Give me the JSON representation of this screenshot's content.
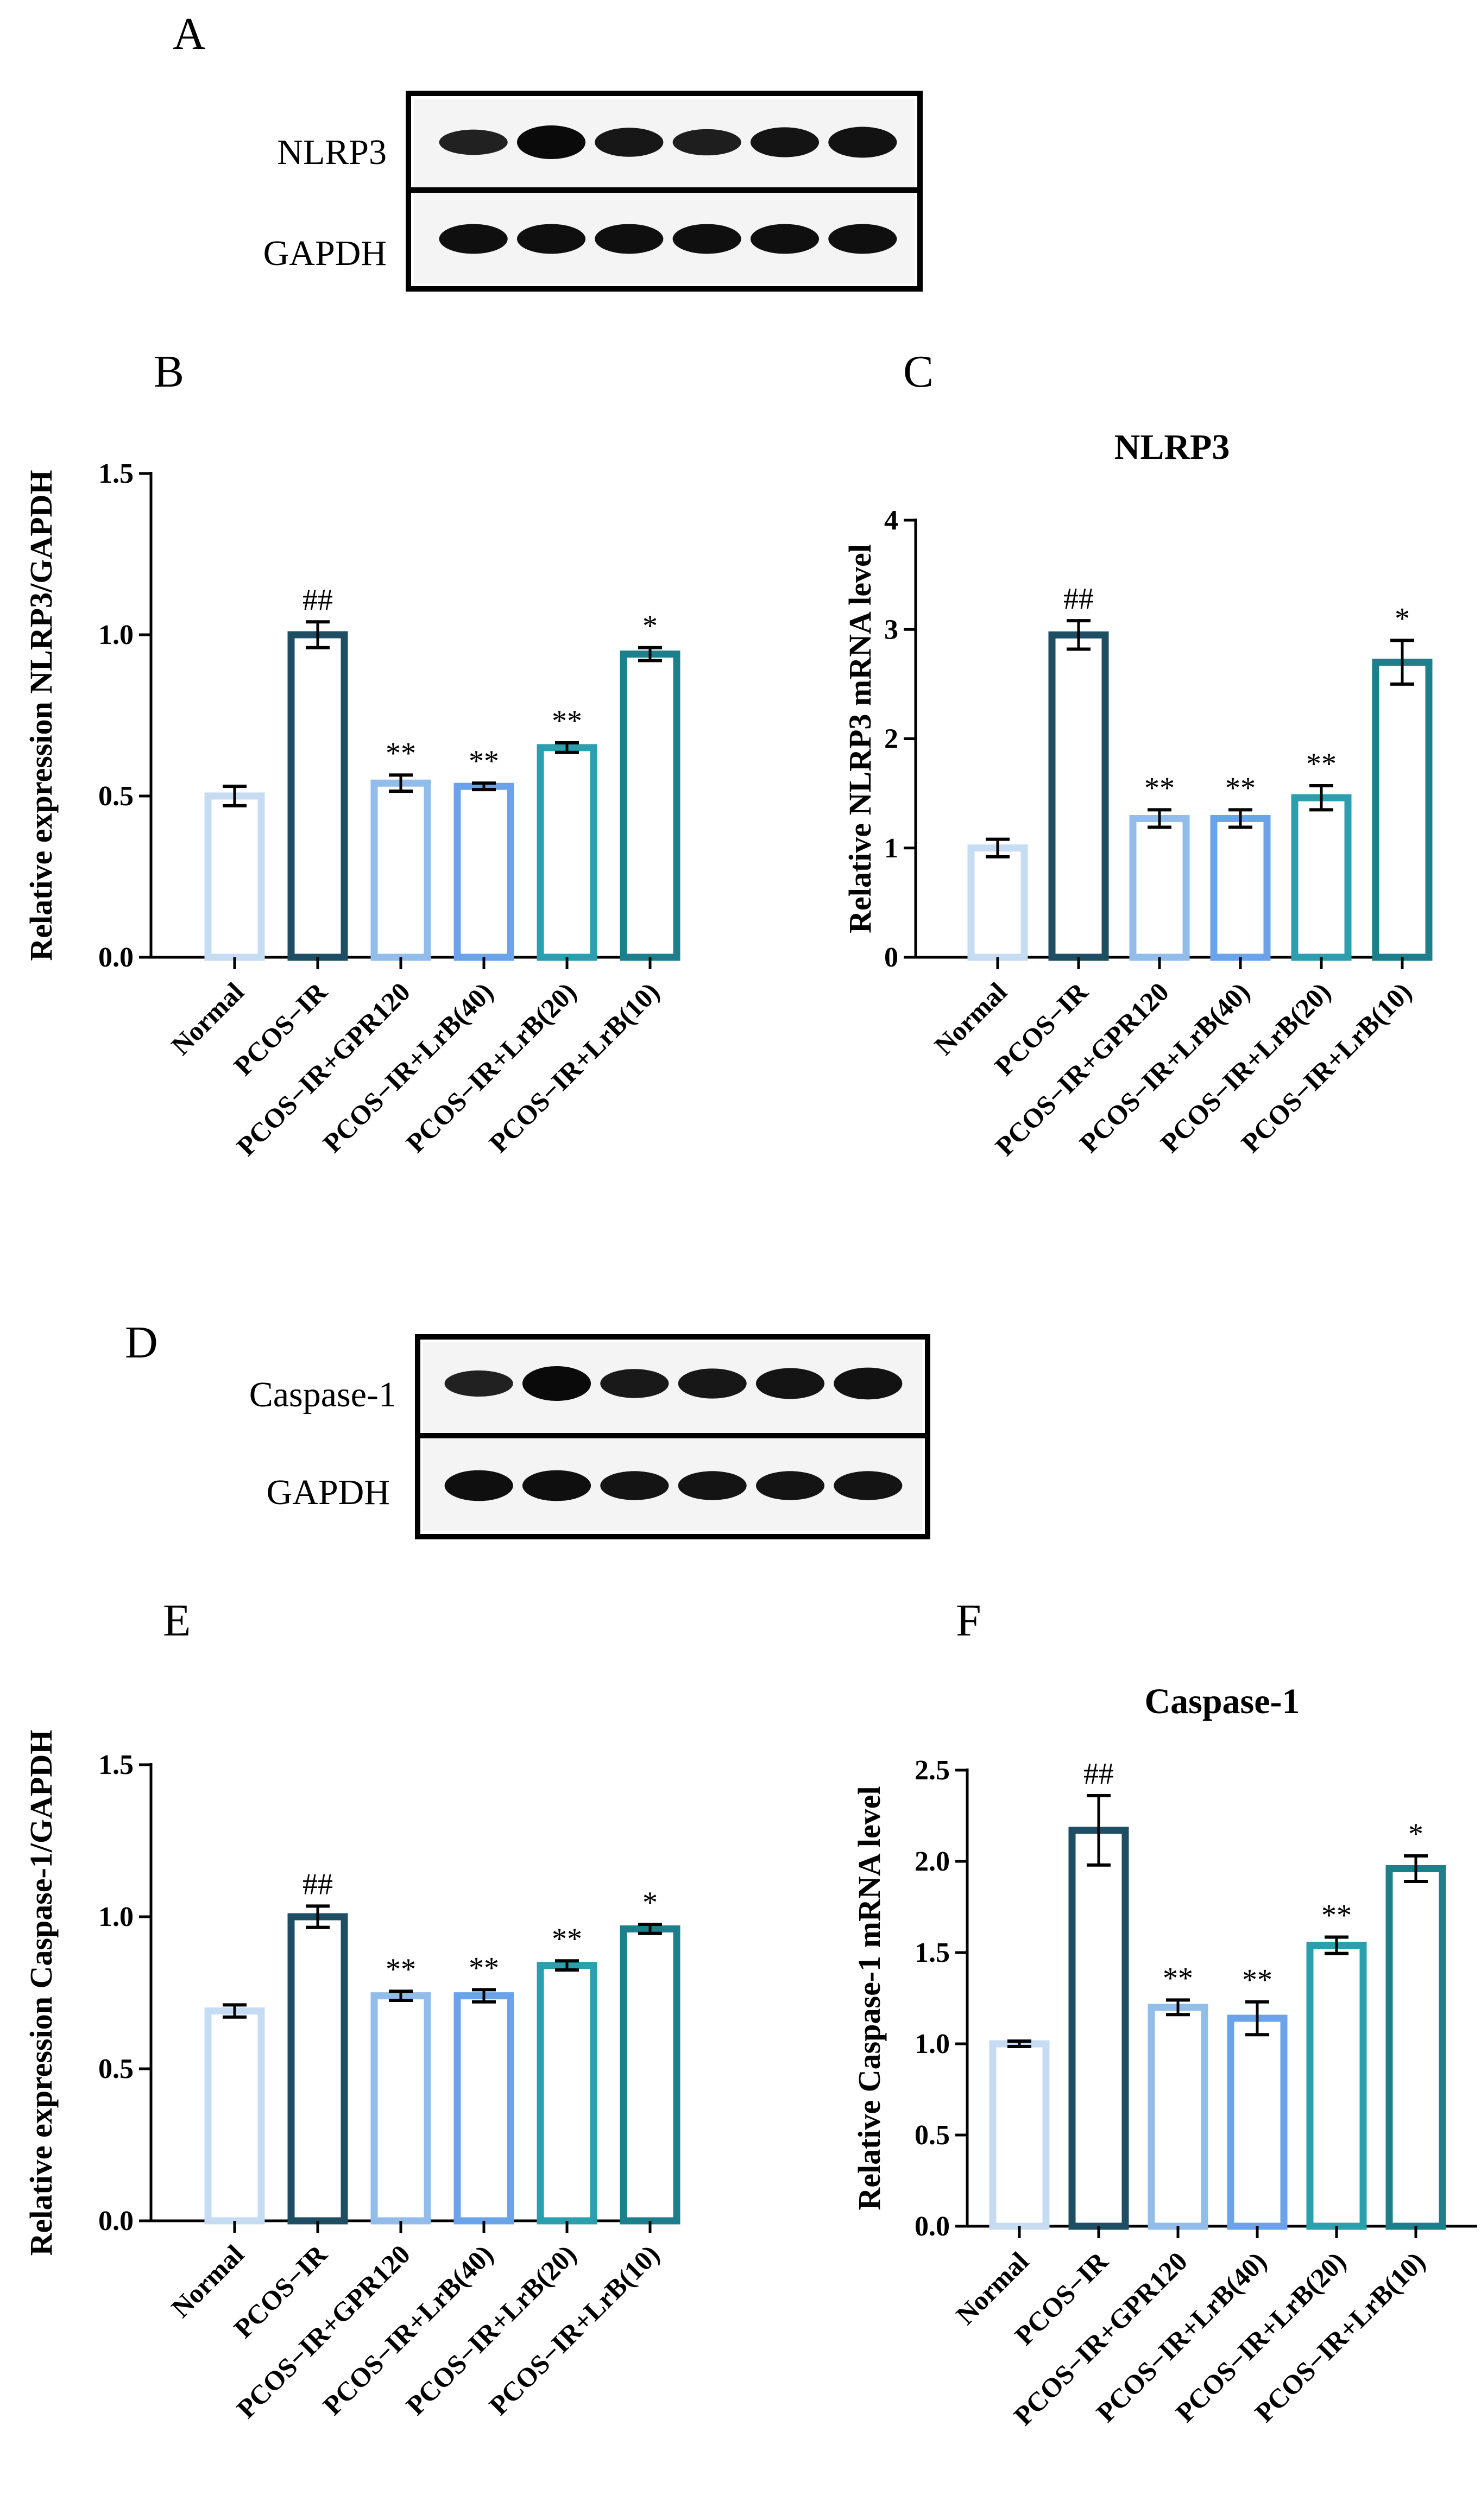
{
  "panels": {
    "A": "A",
    "B": "B",
    "C": "C",
    "D": "D",
    "E": "E",
    "F": "F"
  },
  "blots": [
    {
      "id": "A",
      "labels": [
        "NLRP3",
        "GAPDH"
      ],
      "band_intensity": [
        [
          0.55,
          1.0,
          0.75,
          0.6,
          0.8,
          0.85
        ],
        [
          0.9,
          0.9,
          0.9,
          0.9,
          0.9,
          0.9
        ]
      ]
    },
    {
      "id": "D",
      "labels": [
        "Caspase-1",
        "GAPDH"
      ],
      "band_intensity": [
        [
          0.55,
          1.0,
          0.7,
          0.75,
          0.8,
          0.85
        ],
        [
          0.9,
          0.9,
          0.8,
          0.8,
          0.8,
          0.8
        ]
      ]
    }
  ],
  "chart_data": [
    {
      "id": "B",
      "type": "bar",
      "title": "",
      "ylabel": "Relative expression NLRP3/GAPDH",
      "xlabel": "",
      "categories": [
        "Normal",
        "PCOS−IR",
        "PCOS−IR+GPR120",
        "PCOS−IR+LrB(40)",
        "PCOS−IR+LrB(20)",
        "PCOS−IR+LrB(10)"
      ],
      "values": [
        0.5,
        1.0,
        0.54,
        0.53,
        0.65,
        0.94
      ],
      "errors": [
        0.03,
        0.04,
        0.025,
        0.01,
        0.015,
        0.02
      ],
      "significance": [
        "",
        "##",
        "**",
        "**",
        "**",
        "*"
      ],
      "ylim": [
        0,
        1.5
      ],
      "yticks": [
        "0.0",
        "0.5",
        "1.0",
        "1.5"
      ],
      "ytick_values": [
        0,
        0.5,
        1.0,
        1.5
      ],
      "colors": [
        "#c6dcf2",
        "#1d4e63",
        "#92bdea",
        "#6aa3ea",
        "#2b9fad",
        "#1d7f8c"
      ]
    },
    {
      "id": "C",
      "type": "bar",
      "title": "NLRP3",
      "ylabel": "Relative NLRP3 mRNA level",
      "xlabel": "",
      "categories": [
        "Normal",
        "PCOS−IR",
        "PCOS−IR+GPR120",
        "PCOS−IR+LrB(40)",
        "PCOS−IR+LrB(20)",
        "PCOS−IR+LrB(10)"
      ],
      "values": [
        1.0,
        2.95,
        1.27,
        1.27,
        1.46,
        2.7
      ],
      "errors": [
        0.08,
        0.13,
        0.08,
        0.08,
        0.11,
        0.2
      ],
      "significance": [
        "",
        "##",
        "**",
        "**",
        "**",
        "*"
      ],
      "ylim": [
        0,
        4
      ],
      "yticks": [
        "0",
        "1",
        "2",
        "3",
        "4"
      ],
      "ytick_values": [
        0,
        1,
        2,
        3,
        4
      ],
      "colors": [
        "#c6dcf2",
        "#1d4e63",
        "#92bdea",
        "#6aa3ea",
        "#2b9fad",
        "#1d7f8c"
      ]
    },
    {
      "id": "E",
      "type": "bar",
      "title": "",
      "ylabel": "Relative expression Caspase-1/GAPDH",
      "xlabel": "",
      "categories": [
        "Normal",
        "PCOS−IR",
        "PCOS−IR+GPR120",
        "PCOS−IR+LrB(40)",
        "PCOS−IR+LrB(20)",
        "PCOS−IR+LrB(10)"
      ],
      "values": [
        0.69,
        1.0,
        0.74,
        0.74,
        0.84,
        0.96
      ],
      "errors": [
        0.02,
        0.035,
        0.015,
        0.02,
        0.015,
        0.015
      ],
      "significance": [
        "",
        "##",
        "**",
        "**",
        "**",
        "*"
      ],
      "ylim": [
        0,
        1.5
      ],
      "yticks": [
        "0.0",
        "0.5",
        "1.0",
        "1.5"
      ],
      "ytick_values": [
        0,
        0.5,
        1.0,
        1.5
      ],
      "colors": [
        "#c6dcf2",
        "#1d4e63",
        "#92bdea",
        "#6aa3ea",
        "#2b9fad",
        "#1d7f8c"
      ]
    },
    {
      "id": "F",
      "type": "bar",
      "title": "Caspase-1",
      "ylabel": "Relative Caspase-1 mRNA level",
      "xlabel": "",
      "categories": [
        "Normal",
        "PCOS−IR",
        "PCOS−IR+GPR120",
        "PCOS−IR+LrB(40)",
        "PCOS−IR+LrB(20)",
        "PCOS−IR+LrB(10)"
      ],
      "values": [
        1.0,
        2.17,
        1.2,
        1.14,
        1.54,
        1.96
      ],
      "errors": [
        0.015,
        0.19,
        0.04,
        0.09,
        0.045,
        0.07
      ],
      "significance": [
        "",
        "##",
        "**",
        "**",
        "**",
        "*"
      ],
      "ylim": [
        0,
        2.5
      ],
      "yticks": [
        "0.0",
        "0.5",
        "1.0",
        "1.5",
        "2.0",
        "2.5"
      ],
      "ytick_values": [
        0,
        0.5,
        1.0,
        1.5,
        2.0,
        2.5
      ],
      "colors": [
        "#c6dcf2",
        "#1d4e63",
        "#92bdea",
        "#6aa3ea",
        "#2b9fad",
        "#1d7f8c"
      ]
    }
  ]
}
